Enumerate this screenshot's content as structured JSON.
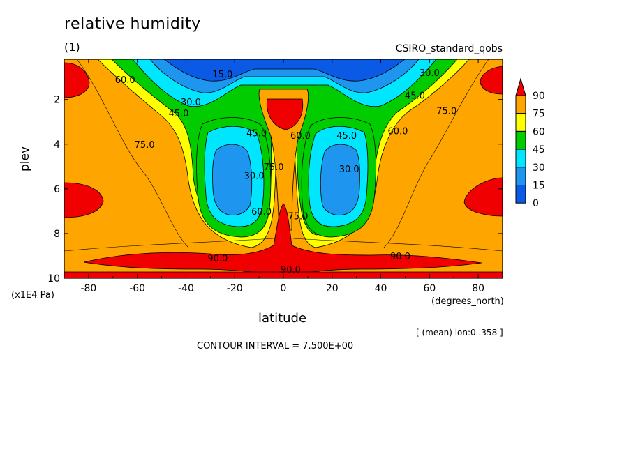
{
  "chart_data": {
    "type": "heatmap",
    "title": "relative humidity",
    "subtitle": "(1)",
    "dataset": "CSIRO_standard_qobs",
    "xlabel": "latitude",
    "xunit": "(degrees_north)",
    "ylabel": "plev",
    "yunit": "(x1E4 Pa)",
    "note": "[ (mean) lon:0..358 ]",
    "contour_interval": "CONTOUR INTERVAL = 7.500E+00",
    "xlim": [
      -90,
      90
    ],
    "ylim": [
      10,
      0.2
    ],
    "xticks": [
      "-80",
      "-60",
      "-40",
      "-20",
      "0",
      "20",
      "40",
      "60",
      "80"
    ],
    "yticks": [
      "2",
      "4",
      "6",
      "8",
      "10"
    ],
    "colorbar": {
      "levels": [
        "0",
        "15",
        "30",
        "45",
        "60",
        "75",
        "90"
      ],
      "colors": [
        "#0a5ae6",
        "#1e96f0",
        "#00e6ff",
        "#00cc00",
        "#ffff00",
        "#ffa500",
        "#f00000"
      ]
    },
    "contour_labels": [
      {
        "text": "15.0",
        "lat": -25,
        "plev": 0.85
      },
      {
        "text": "30.0",
        "lat": 60,
        "plev": 0.8
      },
      {
        "text": "60.0",
        "lat": -65,
        "plev": 1.1
      },
      {
        "text": "45.0",
        "lat": 54,
        "plev": 1.8
      },
      {
        "text": "30.0",
        "lat": -38,
        "plev": 2.1
      },
      {
        "text": "45.0",
        "lat": -43,
        "plev": 2.6
      },
      {
        "text": "75.0",
        "lat": 67,
        "plev": 2.5
      },
      {
        "text": "60.0",
        "lat": 47,
        "plev": 3.4
      },
      {
        "text": "45.0",
        "lat": -11,
        "plev": 3.5
      },
      {
        "text": "60.0",
        "lat": 7,
        "plev": 3.6
      },
      {
        "text": "45.0",
        "lat": 26,
        "plev": 3.6
      },
      {
        "text": "75.0",
        "lat": -57,
        "plev": 4.0
      },
      {
        "text": "30.0",
        "lat": 27,
        "plev": 5.1
      },
      {
        "text": "75.0",
        "lat": -4,
        "plev": 5.0
      },
      {
        "text": "30.0",
        "lat": -12,
        "plev": 5.4
      },
      {
        "text": "60.0",
        "lat": -9,
        "plev": 7.0
      },
      {
        "text": "75.0",
        "lat": 6,
        "plev": 7.2
      },
      {
        "text": "90.0",
        "lat": -27,
        "plev": 9.1
      },
      {
        "text": "90.0",
        "lat": 48,
        "plev": 9.0
      },
      {
        "text": "90.0",
        "lat": 3,
        "plev": 9.6
      }
    ]
  }
}
